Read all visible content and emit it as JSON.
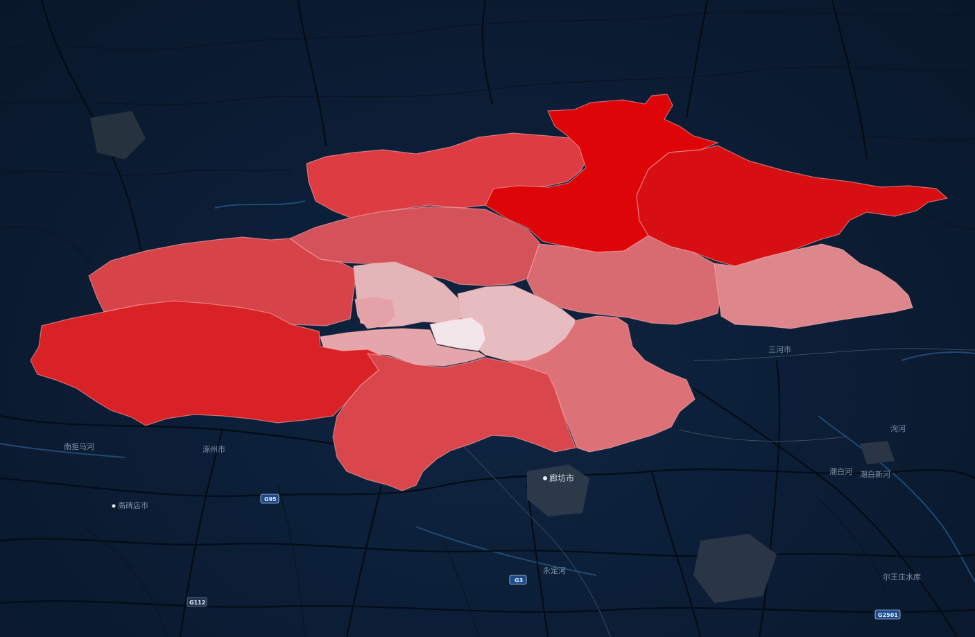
{
  "map": {
    "colors": {
      "background": "#0b1c33",
      "road": "#050b14",
      "river": "#1f4a73",
      "urban": "#2c3948"
    },
    "region_fills": {
      "yanqing": "#dc3c42",
      "huairou": "#dd0508",
      "miyun": "#d70f12",
      "changping": "#d4525a",
      "shunyi": "#d86a72",
      "pinggu": "#dd868c",
      "mentougou": "#d6444a",
      "haidian": "#e3b4b8",
      "chaoyang": "#e6bcc0",
      "core": "#f2e6ea",
      "fengtai": "#e5a6ab",
      "shijingshan": "#e2a2a7",
      "fangshan": "#d82226",
      "daxing": "#d9474d",
      "tongzhou": "#dc7178"
    },
    "labels": {
      "langfang": "廊坊市",
      "yongding_river": "永定河",
      "chaobai_river": "潮白河",
      "chaobai_new_river": "潮白新河",
      "gou_river": "泃河",
      "nanjuma_river": "南拒马河",
      "gaobeidian": "高碑店市",
      "zhuozhou": "涿州市",
      "erwangzhuang": "尔王庄水库",
      "sanhe": "三河市"
    },
    "highways": {
      "g95": "G95",
      "g3": "G3",
      "g112": "G112",
      "g2501": "G2501"
    }
  }
}
